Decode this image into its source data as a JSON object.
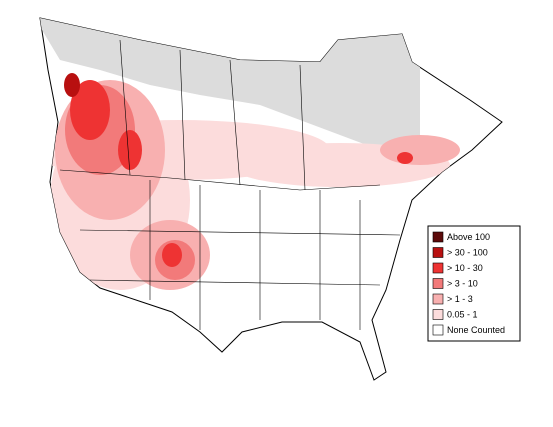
{
  "legend": {
    "items": [
      {
        "label": "Above 100",
        "color": "#5c0a0a"
      },
      {
        "label": "> 30 - 100",
        "color": "#b81010"
      },
      {
        "label": "> 10 - 30",
        "color": "#ee3333"
      },
      {
        "label": "> 3 - 10",
        "color": "#f27a7a"
      },
      {
        "label": "> 1 - 3",
        "color": "#f8b0b0"
      },
      {
        "label": "0.05 - 1",
        "color": "#fcdcdc"
      },
      {
        "label": "None Counted",
        "color": "#ffffff"
      }
    ]
  }
}
